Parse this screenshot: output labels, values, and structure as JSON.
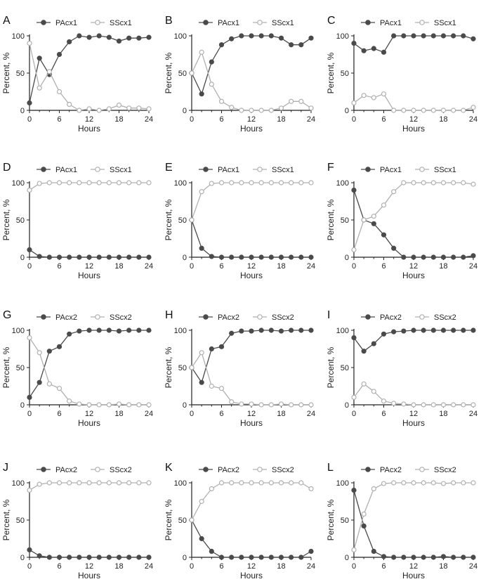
{
  "chart_data": [
    {
      "panel": "A",
      "type": "line",
      "xlabel": "Hours",
      "ylabel": "Percent, %",
      "xlim": [
        0,
        24
      ],
      "ylim": [
        0,
        100
      ],
      "xticks": [
        "0",
        "6",
        "12",
        "18",
        "24"
      ],
      "yticks": [
        "0",
        "50",
        "100"
      ],
      "series": [
        {
          "name": "PAcx1",
          "color": "#4a4a4a",
          "filled": true,
          "x": [
            0,
            2,
            4,
            6,
            8,
            10,
            12,
            14,
            16,
            18,
            20,
            22,
            24
          ],
          "values": [
            10,
            70,
            48,
            75,
            92,
            100,
            98,
            100,
            98,
            93,
            97,
            97,
            98
          ]
        },
        {
          "name": "SScx1",
          "color": "#b0b0b0",
          "filled": false,
          "x": [
            0,
            2,
            4,
            6,
            8,
            10,
            12,
            14,
            16,
            18,
            20,
            22,
            24
          ],
          "values": [
            90,
            30,
            52,
            25,
            8,
            0,
            2,
            0,
            2,
            7,
            3,
            3,
            2
          ]
        }
      ]
    },
    {
      "panel": "B",
      "type": "line",
      "xlabel": "Hours",
      "ylabel": "Percent, %",
      "xlim": [
        0,
        24
      ],
      "ylim": [
        0,
        100
      ],
      "xticks": [
        "0",
        "6",
        "12",
        "18",
        "24"
      ],
      "yticks": [
        "0",
        "50",
        "100"
      ],
      "series": [
        {
          "name": "PAcx1",
          "color": "#4a4a4a",
          "filled": true,
          "x": [
            0,
            2,
            4,
            6,
            8,
            10,
            12,
            14,
            16,
            18,
            20,
            22,
            24
          ],
          "values": [
            50,
            22,
            65,
            88,
            96,
            100,
            100,
            100,
            100,
            97,
            88,
            88,
            97
          ]
        },
        {
          "name": "SScx1",
          "color": "#b0b0b0",
          "filled": false,
          "x": [
            0,
            2,
            4,
            6,
            8,
            10,
            12,
            14,
            16,
            18,
            20,
            22,
            24
          ],
          "values": [
            50,
            78,
            35,
            12,
            4,
            0,
            0,
            0,
            0,
            3,
            12,
            12,
            3
          ]
        }
      ]
    },
    {
      "panel": "C",
      "type": "line",
      "xlabel": "Hours",
      "ylabel": "Percent, %",
      "xlim": [
        0,
        24
      ],
      "ylim": [
        0,
        100
      ],
      "xticks": [
        "0",
        "6",
        "12",
        "18",
        "24"
      ],
      "yticks": [
        "0",
        "50",
        "100"
      ],
      "series": [
        {
          "name": "PAcx1",
          "color": "#4a4a4a",
          "filled": true,
          "x": [
            0,
            2,
            4,
            6,
            8,
            10,
            12,
            14,
            16,
            18,
            20,
            22,
            24
          ],
          "values": [
            90,
            80,
            83,
            78,
            100,
            100,
            100,
            100,
            100,
            100,
            100,
            100,
            96
          ]
        },
        {
          "name": "SScx1",
          "color": "#b0b0b0",
          "filled": false,
          "x": [
            0,
            2,
            4,
            6,
            8,
            10,
            12,
            14,
            16,
            18,
            20,
            22,
            24
          ],
          "values": [
            10,
            20,
            17,
            22,
            0,
            0,
            0,
            0,
            0,
            0,
            0,
            0,
            4
          ]
        }
      ]
    },
    {
      "panel": "D",
      "type": "line",
      "xlabel": "Hours",
      "ylabel": "Percent, %",
      "xlim": [
        0,
        24
      ],
      "ylim": [
        0,
        100
      ],
      "xticks": [
        "0",
        "6",
        "12",
        "18",
        "24"
      ],
      "yticks": [
        "0",
        "50",
        "100"
      ],
      "series": [
        {
          "name": "PAcx1",
          "color": "#4a4a4a",
          "filled": true,
          "x": [
            0,
            2,
            4,
            6,
            8,
            10,
            12,
            14,
            16,
            18,
            20,
            22,
            24
          ],
          "values": [
            10,
            1,
            0,
            0,
            0,
            0,
            0,
            0,
            0,
            0,
            0,
            0,
            0
          ]
        },
        {
          "name": "SScx1",
          "color": "#b0b0b0",
          "filled": false,
          "x": [
            0,
            2,
            4,
            6,
            8,
            10,
            12,
            14,
            16,
            18,
            20,
            22,
            24
          ],
          "values": [
            90,
            99,
            100,
            100,
            100,
            100,
            100,
            100,
            100,
            100,
            100,
            100,
            100
          ]
        }
      ]
    },
    {
      "panel": "E",
      "type": "line",
      "xlabel": "Hours",
      "ylabel": "Percent, %",
      "xlim": [
        0,
        24
      ],
      "ylim": [
        0,
        100
      ],
      "xticks": [
        "0",
        "6",
        "12",
        "18",
        "24"
      ],
      "yticks": [
        "0",
        "50",
        "100"
      ],
      "series": [
        {
          "name": "PAcx1",
          "color": "#4a4a4a",
          "filled": true,
          "x": [
            0,
            2,
            4,
            6,
            8,
            10,
            12,
            14,
            16,
            18,
            20,
            22,
            24
          ],
          "values": [
            50,
            12,
            1,
            0,
            0,
            0,
            0,
            0,
            0,
            0,
            0,
            0,
            0
          ]
        },
        {
          "name": "SScx1",
          "color": "#b0b0b0",
          "filled": false,
          "x": [
            0,
            2,
            4,
            6,
            8,
            10,
            12,
            14,
            16,
            18,
            20,
            22,
            24
          ],
          "values": [
            50,
            88,
            99,
            100,
            100,
            100,
            100,
            100,
            100,
            100,
            100,
            100,
            100
          ]
        }
      ]
    },
    {
      "panel": "F",
      "type": "line",
      "xlabel": "Hours",
      "ylabel": "Percent, %",
      "xlim": [
        0,
        24
      ],
      "ylim": [
        0,
        100
      ],
      "xticks": [
        "0",
        "6",
        "12",
        "18",
        "24"
      ],
      "yticks": [
        "0",
        "50",
        "100"
      ],
      "series": [
        {
          "name": "PAcx1",
          "color": "#4a4a4a",
          "filled": true,
          "x": [
            0,
            2,
            4,
            6,
            8,
            10,
            12,
            14,
            16,
            18,
            20,
            22,
            24
          ],
          "values": [
            90,
            50,
            45,
            30,
            12,
            0,
            0,
            0,
            0,
            0,
            0,
            0,
            2
          ]
        },
        {
          "name": "SScx1",
          "color": "#b0b0b0",
          "filled": false,
          "x": [
            0,
            2,
            4,
            6,
            8,
            10,
            12,
            14,
            16,
            18,
            20,
            22,
            24
          ],
          "values": [
            10,
            50,
            55,
            70,
            88,
            100,
            100,
            100,
            100,
            100,
            100,
            100,
            98
          ]
        }
      ]
    },
    {
      "panel": "G",
      "type": "line",
      "xlabel": "Hours",
      "ylabel": "Percent, %",
      "xlim": [
        0,
        24
      ],
      "ylim": [
        0,
        100
      ],
      "xticks": [
        "0",
        "6",
        "12",
        "18",
        "24"
      ],
      "yticks": [
        "0",
        "50",
        "100"
      ],
      "series": [
        {
          "name": "PAcx2",
          "color": "#4a4a4a",
          "filled": true,
          "x": [
            0,
            2,
            4,
            6,
            8,
            10,
            12,
            14,
            16,
            18,
            20,
            22,
            24
          ],
          "values": [
            10,
            30,
            72,
            78,
            95,
            99,
            100,
            100,
            100,
            99,
            100,
            100,
            100
          ]
        },
        {
          "name": "SScx2",
          "color": "#b0b0b0",
          "filled": false,
          "x": [
            0,
            2,
            4,
            6,
            8,
            10,
            12,
            14,
            16,
            18,
            20,
            22,
            24
          ],
          "values": [
            90,
            70,
            28,
            22,
            5,
            1,
            0,
            0,
            0,
            1,
            0,
            0,
            0
          ]
        }
      ]
    },
    {
      "panel": "H",
      "type": "line",
      "xlabel": "Hours",
      "ylabel": "Percent, %",
      "xlim": [
        0,
        24
      ],
      "ylim": [
        0,
        100
      ],
      "xticks": [
        "0",
        "6",
        "12",
        "18",
        "24"
      ],
      "yticks": [
        "0",
        "50",
        "100"
      ],
      "series": [
        {
          "name": "PAcx2",
          "color": "#4a4a4a",
          "filled": true,
          "x": [
            0,
            2,
            4,
            6,
            8,
            10,
            12,
            14,
            16,
            18,
            20,
            22,
            24
          ],
          "values": [
            50,
            30,
            75,
            78,
            96,
            99,
            99,
            100,
            100,
            99,
            100,
            100,
            100
          ]
        },
        {
          "name": "SScx2",
          "color": "#b0b0b0",
          "filled": false,
          "x": [
            0,
            2,
            4,
            6,
            8,
            10,
            12,
            14,
            16,
            18,
            20,
            22,
            24
          ],
          "values": [
            50,
            70,
            25,
            22,
            4,
            1,
            1,
            0,
            0,
            1,
            0,
            0,
            0
          ]
        }
      ]
    },
    {
      "panel": "I",
      "type": "line",
      "xlabel": "Hours",
      "ylabel": "Percent, %",
      "xlim": [
        0,
        24
      ],
      "ylim": [
        0,
        100
      ],
      "xticks": [
        "0",
        "6",
        "12",
        "18",
        "24"
      ],
      "yticks": [
        "0",
        "50",
        "100"
      ],
      "series": [
        {
          "name": "PAcx2",
          "color": "#4a4a4a",
          "filled": true,
          "x": [
            0,
            2,
            4,
            6,
            8,
            10,
            12,
            14,
            16,
            18,
            20,
            22,
            24
          ],
          "values": [
            90,
            72,
            82,
            95,
            98,
            99,
            100,
            100,
            100,
            100,
            100,
            100,
            100
          ]
        },
        {
          "name": "SScx2",
          "color": "#b0b0b0",
          "filled": false,
          "x": [
            0,
            2,
            4,
            6,
            8,
            10,
            12,
            14,
            16,
            18,
            20,
            22,
            24
          ],
          "values": [
            10,
            28,
            18,
            5,
            2,
            1,
            0,
            0,
            0,
            0,
            0,
            0,
            0
          ]
        }
      ]
    },
    {
      "panel": "J",
      "type": "line",
      "xlabel": "Hours",
      "ylabel": "Percent, %",
      "xlim": [
        0,
        24
      ],
      "ylim": [
        0,
        100
      ],
      "xticks": [
        "0",
        "6",
        "12",
        "18",
        "24"
      ],
      "yticks": [
        "0",
        "50",
        "100"
      ],
      "series": [
        {
          "name": "PAcx2",
          "color": "#4a4a4a",
          "filled": true,
          "x": [
            0,
            2,
            4,
            6,
            8,
            10,
            12,
            14,
            16,
            18,
            20,
            22,
            24
          ],
          "values": [
            10,
            2,
            0,
            0,
            0,
            0,
            0,
            0,
            0,
            0,
            0,
            0,
            0
          ]
        },
        {
          "name": "SScx2",
          "color": "#b0b0b0",
          "filled": false,
          "x": [
            0,
            2,
            4,
            6,
            8,
            10,
            12,
            14,
            16,
            18,
            20,
            22,
            24
          ],
          "values": [
            90,
            98,
            100,
            100,
            100,
            100,
            100,
            100,
            100,
            100,
            100,
            100,
            100
          ]
        }
      ]
    },
    {
      "panel": "K",
      "type": "line",
      "xlabel": "Hours",
      "ylabel": "Percent, %",
      "xlim": [
        0,
        24
      ],
      "ylim": [
        0,
        100
      ],
      "xticks": [
        "0",
        "6",
        "12",
        "18",
        "24"
      ],
      "yticks": [
        "0",
        "50",
        "100"
      ],
      "series": [
        {
          "name": "PAcx2",
          "color": "#4a4a4a",
          "filled": true,
          "x": [
            0,
            2,
            4,
            6,
            8,
            10,
            12,
            14,
            16,
            18,
            20,
            22,
            24
          ],
          "values": [
            50,
            25,
            8,
            0,
            0,
            0,
            0,
            0,
            0,
            0,
            0,
            0,
            8
          ]
        },
        {
          "name": "SScx2",
          "color": "#b0b0b0",
          "filled": false,
          "x": [
            0,
            2,
            4,
            6,
            8,
            10,
            12,
            14,
            16,
            18,
            20,
            22,
            24
          ],
          "values": [
            50,
            75,
            92,
            100,
            100,
            100,
            100,
            100,
            100,
            100,
            100,
            100,
            92
          ]
        }
      ]
    },
    {
      "panel": "L",
      "type": "line",
      "xlabel": "Hours",
      "ylabel": "Percent, %",
      "xlim": [
        0,
        24
      ],
      "ylim": [
        0,
        100
      ],
      "xticks": [
        "0",
        "6",
        "12",
        "18",
        "24"
      ],
      "yticks": [
        "0",
        "50",
        "100"
      ],
      "series": [
        {
          "name": "PAcx2",
          "color": "#4a4a4a",
          "filled": true,
          "x": [
            0,
            2,
            4,
            6,
            8,
            10,
            12,
            14,
            16,
            18,
            20,
            22,
            24
          ],
          "values": [
            90,
            42,
            8,
            1,
            0,
            0,
            0,
            0,
            0,
            1,
            0,
            0,
            0
          ]
        },
        {
          "name": "SScx2",
          "color": "#b0b0b0",
          "filled": false,
          "x": [
            0,
            2,
            4,
            6,
            8,
            10,
            12,
            14,
            16,
            18,
            20,
            22,
            24
          ],
          "values": [
            10,
            58,
            92,
            99,
            100,
            100,
            100,
            100,
            100,
            99,
            100,
            100,
            100
          ]
        }
      ]
    }
  ]
}
